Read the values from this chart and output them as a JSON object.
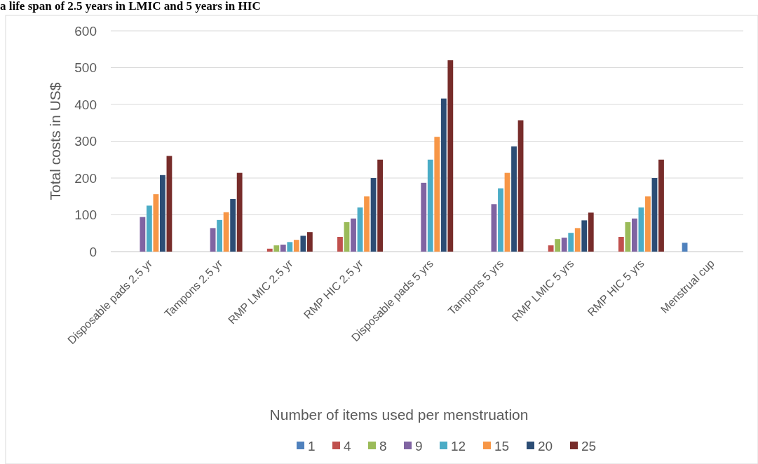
{
  "chart_data": {
    "type": "bar",
    "title": "a life span of 2.5 years in LMIC and 5 years in HIC",
    "xlabel": "Number of items used per menstruation",
    "ylabel": "Total costs in US$",
    "categories": [
      "Disposable pads 2.5 yr",
      "Tampons 2.5 yr",
      "RMP LMIC 2.5 yr",
      "RMP HIC 2.5 yr",
      "Disposable pads 5 yrs",
      "Tampons 5 yrs",
      "RMP LMIC 5 yrs",
      "RMP HIC 5 yrs",
      "Menstrual cup"
    ],
    "series": [
      {
        "name": "1",
        "color": "#4f81bd",
        "values": [
          null,
          null,
          null,
          null,
          null,
          null,
          null,
          null,
          24
        ]
      },
      {
        "name": "4",
        "color": "#c0504d",
        "values": [
          null,
          null,
          8,
          40,
          null,
          null,
          17,
          40,
          null
        ]
      },
      {
        "name": "8",
        "color": "#9bbb59",
        "values": [
          null,
          null,
          17,
          80,
          null,
          null,
          34,
          80,
          null
        ]
      },
      {
        "name": "9",
        "color": "#8064a2",
        "values": [
          94,
          64,
          19,
          90,
          187,
          129,
          38,
          90,
          null
        ]
      },
      {
        "name": "12",
        "color": "#4bacc6",
        "values": [
          125,
          86,
          26,
          120,
          250,
          172,
          51,
          120,
          null
        ]
      },
      {
        "name": "15",
        "color": "#f79646",
        "values": [
          156,
          107,
          32,
          150,
          312,
          214,
          64,
          150,
          null
        ]
      },
      {
        "name": "20",
        "color": "#2c4d75",
        "values": [
          208,
          143,
          43,
          200,
          416,
          286,
          85,
          200,
          null
        ]
      },
      {
        "name": "25",
        "color": "#772c2a",
        "values": [
          260,
          214,
          53,
          250,
          520,
          357,
          106,
          250,
          null
        ]
      }
    ],
    "ylim": [
      0,
      600
    ],
    "yticks": [
      0,
      100,
      200,
      300,
      400,
      500,
      600
    ],
    "grid": "y",
    "legend": "bottom"
  }
}
